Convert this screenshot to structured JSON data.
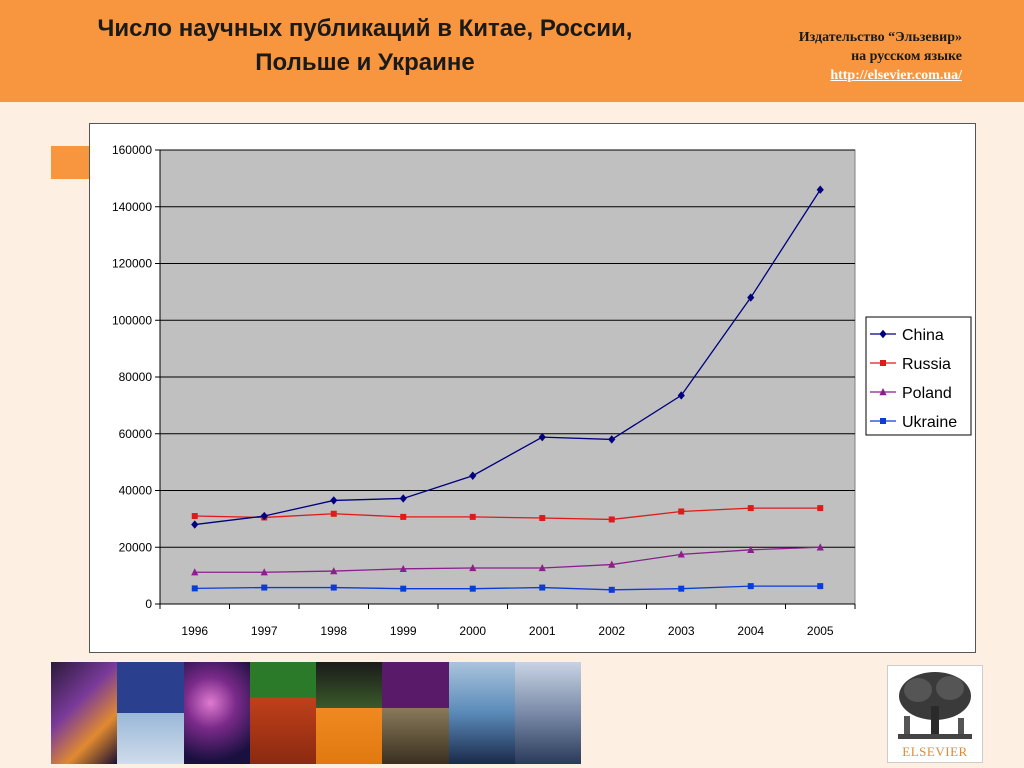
{
  "header": {
    "title_line1": "Число научных публикаций в Китае, России,",
    "title_line2": "Польше и Украине",
    "publisher_line1": "Издательство “Эльзевир»",
    "publisher_line2": "на русском языке",
    "publisher_url": "http://elsevier.com.ua/"
  },
  "logo": {
    "wordmark": "ELSEVIER",
    "icon": "elsevier-tree-icon"
  },
  "colors": {
    "header_bg": "#f7963f",
    "plot_bg": "#c0c0c0",
    "china": "#00007f",
    "russia": "#e01a1a",
    "poland": "#8b1f8b",
    "ukraine": "#0a3cd8"
  },
  "chart_data": {
    "type": "line",
    "x": [
      "1996",
      "1997",
      "1998",
      "1999",
      "2000",
      "2001",
      "2002",
      "2003",
      "2004",
      "2005"
    ],
    "ylim": [
      0,
      160000
    ],
    "yticks": [
      0,
      20000,
      40000,
      60000,
      80000,
      100000,
      120000,
      140000,
      160000
    ],
    "grid": true,
    "legend_position": "right",
    "series": [
      {
        "name": "China",
        "marker": "diamond",
        "values": [
          28000,
          31000,
          36500,
          37200,
          45200,
          58800,
          58000,
          73500,
          108000,
          146000
        ]
      },
      {
        "name": "Russia",
        "marker": "square",
        "values": [
          31000,
          30500,
          31800,
          30700,
          30700,
          30300,
          29800,
          32600,
          33800,
          33800
        ]
      },
      {
        "name": "Poland",
        "marker": "triangle",
        "values": [
          11200,
          11200,
          11600,
          12400,
          12700,
          12700,
          13900,
          17500,
          19100,
          20000
        ]
      },
      {
        "name": "Ukraine",
        "marker": "square",
        "values": [
          5500,
          5800,
          5800,
          5400,
          5400,
          5800,
          5000,
          5400,
          6300,
          6300
        ]
      }
    ]
  }
}
